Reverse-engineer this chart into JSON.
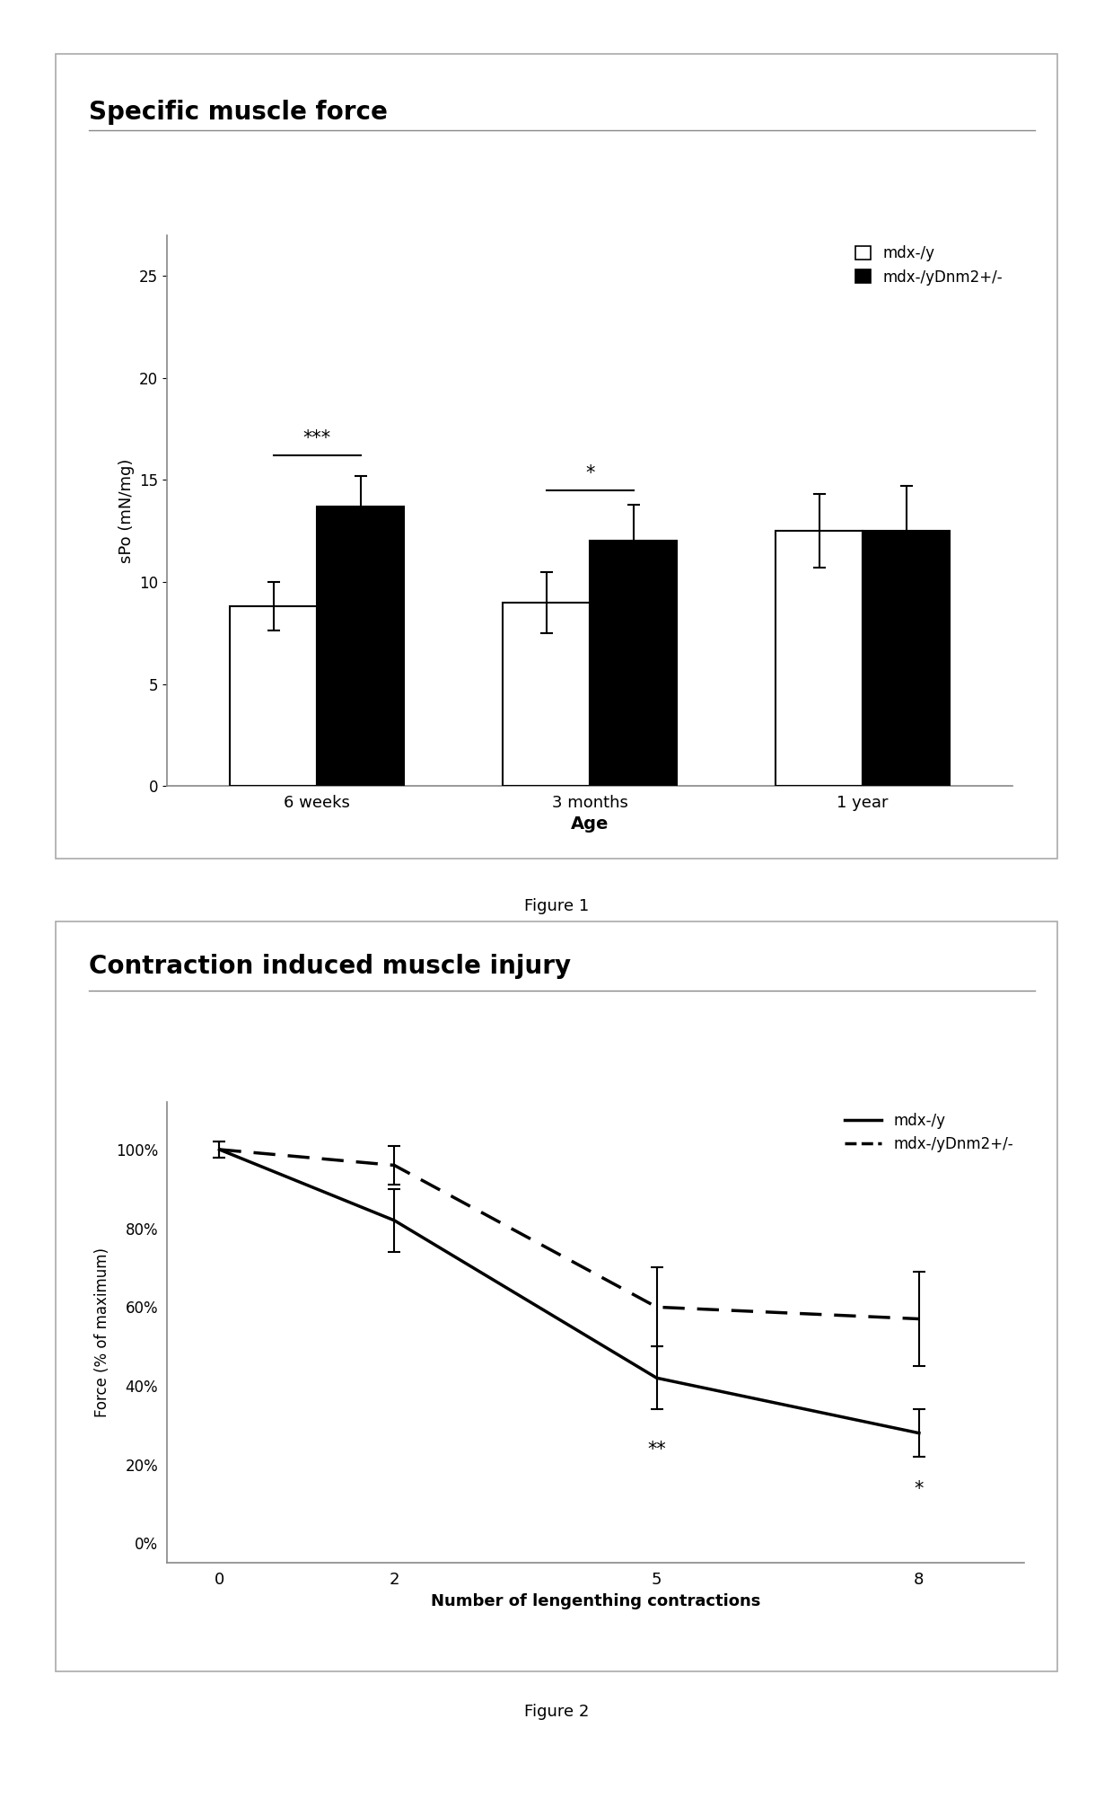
{
  "fig1": {
    "title": "Specific muscle force",
    "ylabel": "sPo (mN/mg)",
    "xlabel": "Age",
    "categories": [
      "6 weeks",
      "3 months",
      "1 year"
    ],
    "mdx_values": [
      8.8,
      9.0,
      12.5
    ],
    "mdx_errors": [
      1.2,
      1.5,
      1.8
    ],
    "dnm2_values": [
      13.7,
      12.0,
      12.5
    ],
    "dnm2_errors": [
      1.5,
      1.8,
      2.2
    ],
    "ylim": [
      0,
      27
    ],
    "yticks": [
      0,
      5,
      10,
      15,
      20,
      25
    ],
    "sig_6wk": "***",
    "sig_3mo": "*",
    "legend_labels": [
      "mdx-/y",
      "mdx-/yDnm2+/-"
    ],
    "bar_width": 0.32
  },
  "fig2": {
    "title": "Contraction induced muscle injury",
    "ylabel": "Force (% of maximum)",
    "xlabel": "Number of lengenthing contractions",
    "xvals": [
      0,
      2,
      5,
      8
    ],
    "mdx_values": [
      100,
      82,
      42,
      28
    ],
    "mdx_errors": [
      2,
      8,
      8,
      6
    ],
    "dnm2_values": [
      100,
      96,
      60,
      57
    ],
    "dnm2_errors": [
      2,
      5,
      10,
      12
    ],
    "ylim": [
      -5,
      112
    ],
    "ytick_labels": [
      "0%",
      "20%",
      "40%",
      "60%",
      "80%",
      "100%"
    ],
    "ytick_vals": [
      0,
      20,
      40,
      60,
      80,
      100
    ],
    "sig_5": "**",
    "sig_8": "*",
    "legend_labels": [
      "mdx-/y",
      "mdx-/yDnm2+/-"
    ]
  },
  "bg_color": "#ffffff",
  "panel_bg": "#ffffff",
  "caption1": "Figure 1",
  "caption2": "Figure 2"
}
